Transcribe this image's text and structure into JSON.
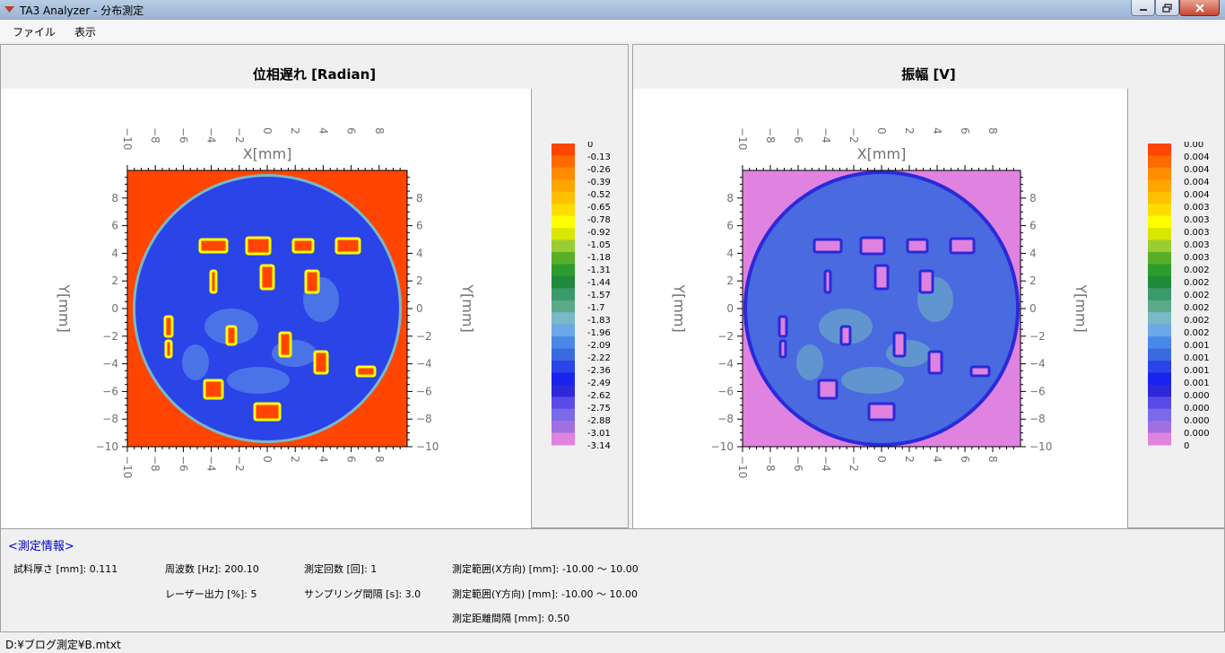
{
  "window": {
    "title": "TA3 Analyzer - 分布測定"
  },
  "menu": {
    "file": "ファイル",
    "view": "表示"
  },
  "plots": [
    {
      "title": "位相遅れ [Radian]",
      "x_label": "X[mm]",
      "y_label": "Y[mm]",
      "ticks": [
        "−10",
        "−8",
        "−6",
        "−4",
        "−2",
        "0",
        "2",
        "4",
        "6",
        "8"
      ],
      "colorbar_labels": [
        "0",
        "-0.13",
        "-0.26",
        "-0.39",
        "-0.52",
        "-0.65",
        "-0.78",
        "-0.92",
        "-1.05",
        "-1.18",
        "-1.31",
        "-1.44",
        "-1.57",
        "-1.7",
        "-1.83",
        "-1.96",
        "-2.09",
        "-2.22",
        "-2.36",
        "-2.49",
        "-2.62",
        "-2.75",
        "-2.88",
        "-3.01",
        "-3.14"
      ]
    },
    {
      "title": "振幅 [V]",
      "x_label": "X[mm]",
      "y_label": "Y[mm]",
      "ticks": [
        "−10",
        "−8",
        "−6",
        "−4",
        "−2",
        "0",
        "2",
        "4",
        "6",
        "8"
      ],
      "colorbar_labels": [
        "0.00",
        "0.004",
        "0.004",
        "0.004",
        "0.004",
        "0.003",
        "0.003",
        "0.003",
        "0.003",
        "0.003",
        "0.002",
        "0.002",
        "0.002",
        "0.002",
        "0.002",
        "0.002",
        "0.001",
        "0.001",
        "0.001",
        "0.001",
        "0.000",
        "0.000",
        "0.000",
        "0.000",
        "0"
      ]
    }
  ],
  "colorbar_colors": [
    "#ff4500",
    "#ff6a00",
    "#ff8c00",
    "#ffa500",
    "#ffc000",
    "#ffdd00",
    "#ffff00",
    "#d9e600",
    "#9acd32",
    "#5aaf28",
    "#2e9b2e",
    "#1f8a3a",
    "#3a9a6a",
    "#5aaa8a",
    "#7ab8c8",
    "#6aa8e8",
    "#4a88e8",
    "#3a6ae0",
    "#2a44e8",
    "#1a22f0",
    "#2a2ad8",
    "#5a4ae8",
    "#7a6ae8",
    "#a070e0",
    "#e082e0"
  ],
  "info": {
    "title": "<測定情報>",
    "thickness": "試料厚さ [mm]: 0.111",
    "frequency": "周波数 [Hz]: 200.10",
    "count": "測定回数 [回]: 1",
    "range_x": "測定範囲(X方向) [mm]: -10.00 ～ 10.00",
    "laser": "レーザー出力 [%]: 5",
    "sampling": "サンプリング間隔 [s]: 3.0",
    "range_y": "測定範囲(Y方向) [mm]: -10.00 ～ 10.00",
    "pitch": "測定距離間隔 [mm]: 0.50"
  },
  "status": {
    "path": "D:¥ブログ測定¥B.mtxt"
  }
}
